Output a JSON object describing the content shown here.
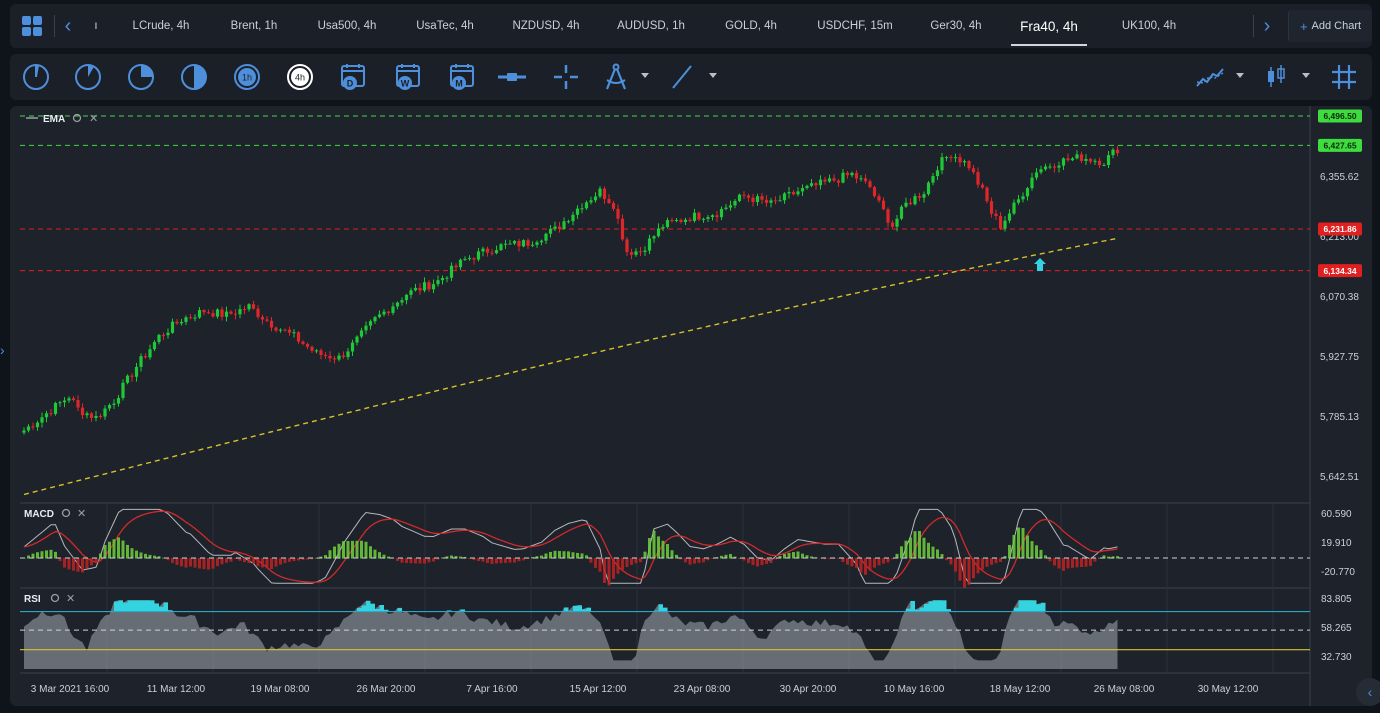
{
  "tabs": [
    {
      "label": "ı"
    },
    {
      "label": "LCrude, 4h"
    },
    {
      "label": "Brent, 1h"
    },
    {
      "label": "Usa500, 4h"
    },
    {
      "label": "UsaTec, 4h"
    },
    {
      "label": "NZDUSD, 4h"
    },
    {
      "label": "AUDUSD, 1h"
    },
    {
      "label": "GOLD, 4h"
    },
    {
      "label": "USDCHF, 15m"
    },
    {
      "label": "Ger30, 4h"
    },
    {
      "label": "Fra40, 4h",
      "active": true
    },
    {
      "label": "UK100, 4h"
    }
  ],
  "add_chart_label": "Add Chart",
  "toolbar": {
    "timeframes": [
      "1m-icon",
      "5m-icon",
      "15m-icon",
      "30m-icon",
      "1h",
      "4h"
    ],
    "calendar_tools": [
      "D",
      "W",
      "M"
    ],
    "other_tools": [
      "horizontal-line-icon",
      "crosshair-icon",
      "draw-fib-icon",
      "trendline-icon"
    ],
    "right_tools": [
      "indicators-icon",
      "candle-type-icon",
      "grid-icon"
    ]
  },
  "panes": {
    "main_label": "EMA",
    "macd_label": "MACD",
    "rsi_label": "RSI"
  },
  "price_axis": [
    "6,355.62",
    "6,213.00",
    "6,070.38",
    "5,927.75",
    "5,785.13",
    "5,642.51"
  ],
  "price_tags": [
    {
      "value": "6,496.50",
      "color": "#3fdc3f"
    },
    {
      "value": "6,427.65",
      "color": "#3fdc3f"
    },
    {
      "value": "6,231.86",
      "color": "#e02020"
    },
    {
      "value": "6,134.34",
      "color": "#e02020"
    }
  ],
  "macd_axis": [
    "60.590",
    "19.910",
    "-20.770"
  ],
  "rsi_axis": [
    "83.805",
    "58.265",
    "32.730"
  ],
  "time_axis": [
    "3 Mar 2021 16:00",
    "11 Mar 12:00",
    "19 Mar 08:00",
    "26 Mar 20:00",
    "7 Apr 16:00",
    "15 Apr 12:00",
    "23 Apr 08:00",
    "30 Apr 20:00",
    "10 May 16:00",
    "18 May 12:00",
    "26 May 08:00",
    "30 May 12:00"
  ],
  "colors": {
    "up": "#1ec837",
    "down": "#e0262a",
    "ema": "#d8c22a",
    "macd_fill": "#8a8f96",
    "rsi_fill": "#9aa0a6",
    "rsi_hot": "#33d4e0",
    "accent": "#4e8fdb"
  },
  "chart_data": {
    "type": "candlestick",
    "ylim": [
      5590,
      6520
    ],
    "anchors": [
      [
        0,
        5760
      ],
      [
        5,
        5800
      ],
      [
        10,
        5840
      ],
      [
        12,
        5810
      ],
      [
        16,
        5790
      ],
      [
        20,
        5830
      ],
      [
        25,
        5910
      ],
      [
        30,
        5980
      ],
      [
        35,
        6020
      ],
      [
        40,
        6040
      ],
      [
        45,
        6030
      ],
      [
        50,
        6050
      ],
      [
        55,
        6010
      ],
      [
        60,
        5980
      ],
      [
        65,
        5940
      ],
      [
        70,
        5930
      ],
      [
        73,
        5960
      ],
      [
        78,
        6020
      ],
      [
        85,
        6080
      ],
      [
        92,
        6110
      ],
      [
        98,
        6160
      ],
      [
        105,
        6190
      ],
      [
        112,
        6200
      ],
      [
        118,
        6230
      ],
      [
        124,
        6290
      ],
      [
        128,
        6320
      ],
      [
        131,
        6290
      ],
      [
        134,
        6180
      ],
      [
        137,
        6180
      ],
      [
        142,
        6240
      ],
      [
        148,
        6260
      ],
      [
        154,
        6270
      ],
      [
        160,
        6310
      ],
      [
        166,
        6290
      ],
      [
        172,
        6320
      ],
      [
        178,
        6340
      ],
      [
        184,
        6360
      ],
      [
        188,
        6330
      ],
      [
        190,
        6290
      ],
      [
        193,
        6240
      ],
      [
        196,
        6290
      ],
      [
        200,
        6320
      ],
      [
        203,
        6380
      ],
      [
        206,
        6410
      ],
      [
        210,
        6380
      ],
      [
        213,
        6320
      ],
      [
        215,
        6270
      ],
      [
        217,
        6240
      ],
      [
        221,
        6300
      ],
      [
        225,
        6370
      ],
      [
        230,
        6390
      ],
      [
        235,
        6400
      ],
      [
        240,
        6390
      ],
      [
        243,
        6420
      ]
    ],
    "ema_start": 5610,
    "ema_end": 6210
  }
}
